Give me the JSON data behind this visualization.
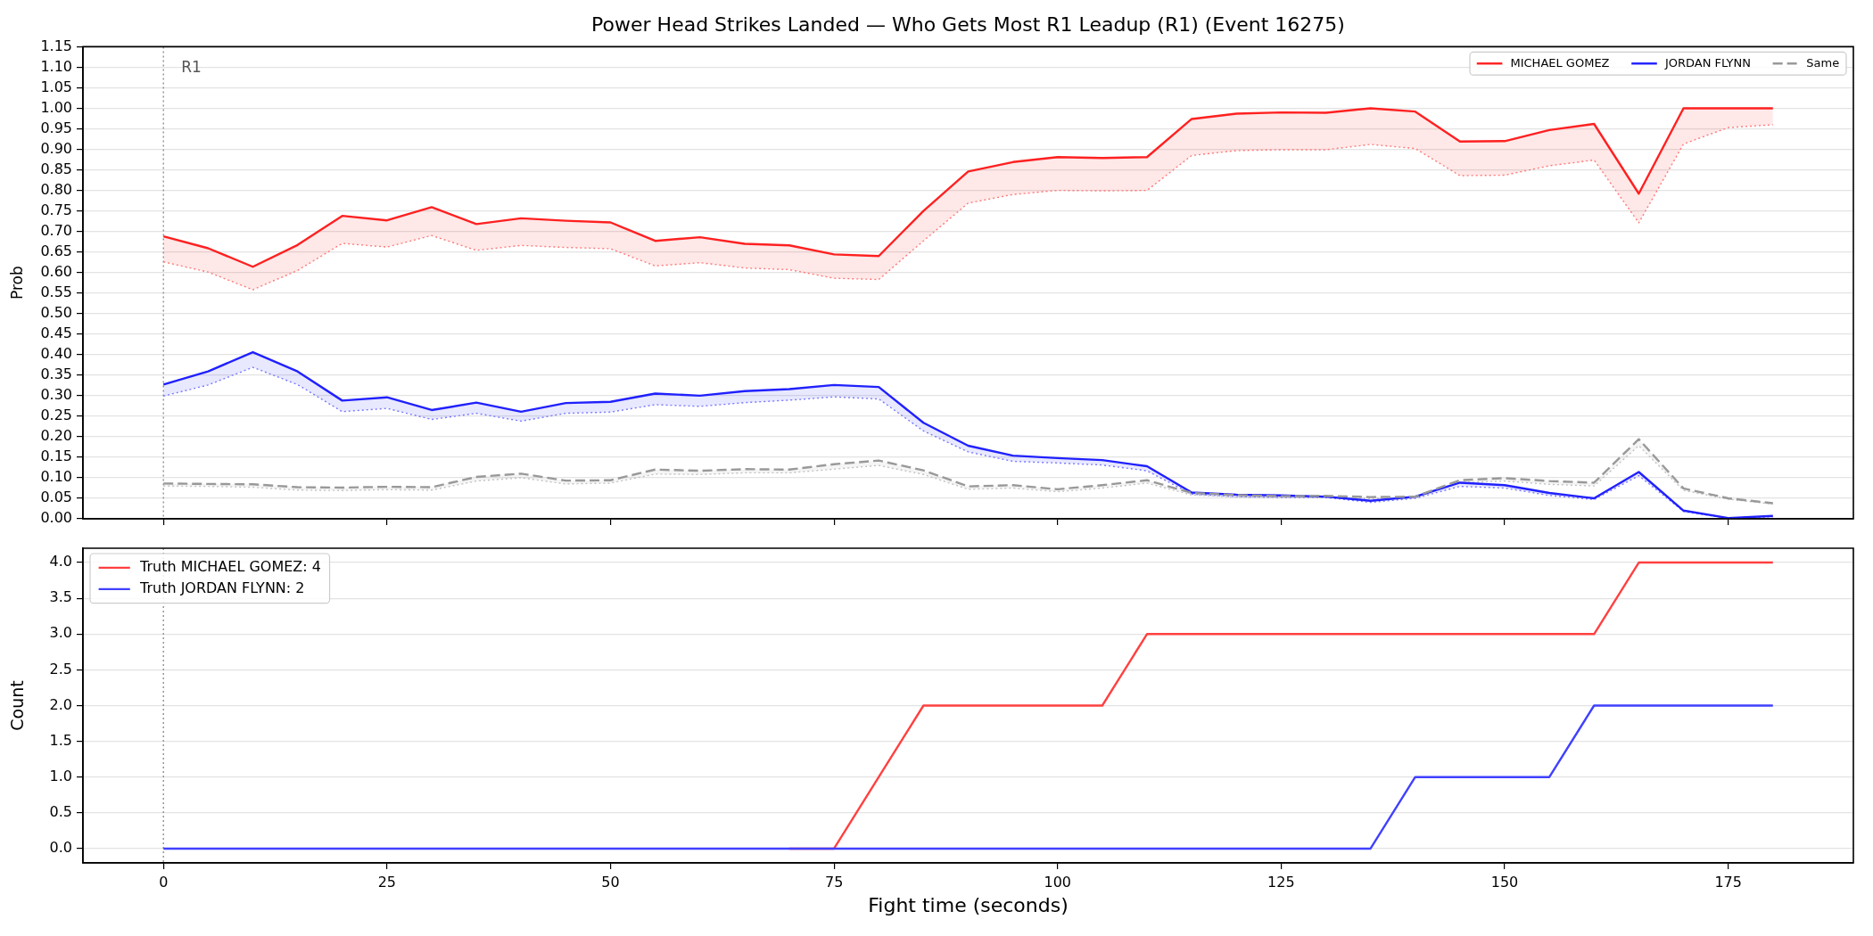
{
  "chart_data": [
    {
      "type": "line",
      "title": "Power Head Strikes Landed — Who Gets Most R1 Leadup (R1) (Event 16275)",
      "ylabel": "Prob",
      "x": [
        0,
        5,
        10,
        15,
        20,
        25,
        30,
        35,
        40,
        45,
        50,
        55,
        60,
        65,
        70,
        75,
        80,
        85,
        90,
        95,
        100,
        105,
        110,
        115,
        120,
        125,
        130,
        135,
        140,
        145,
        150,
        155,
        160,
        165,
        170,
        175,
        180
      ],
      "series": [
        {
          "color": "#ff7979",
          "line_style": "dotted",
          "values": [
            0.626,
            0.601,
            0.558,
            0.605,
            0.671,
            0.662,
            0.69,
            0.654,
            0.666,
            0.661,
            0.658,
            0.616,
            0.624,
            0.611,
            0.607,
            0.586,
            0.583,
            0.677,
            0.769,
            0.79,
            0.8,
            0.799,
            0.8,
            0.885,
            0.897,
            0.899,
            0.899,
            0.912,
            0.902,
            0.836,
            0.837,
            0.86,
            0.874,
            0.721,
            0.913,
            0.953,
            0.96
          ]
        },
        {
          "color": "#7979ff",
          "line_style": "dotted",
          "values": [
            0.299,
            0.326,
            0.369,
            0.327,
            0.261,
            0.269,
            0.242,
            0.257,
            0.238,
            0.257,
            0.26,
            0.278,
            0.274,
            0.283,
            0.289,
            0.297,
            0.292,
            0.214,
            0.163,
            0.14,
            0.136,
            0.131,
            0.117,
            0.06,
            0.054,
            0.052,
            0.052,
            0.04,
            0.05,
            0.079,
            0.075,
            0.057,
            0.047,
            0.105,
            0.018,
            0.001,
            0.005
          ]
        },
        {
          "color": "#c2c2c2",
          "line_style": "dotted",
          "values": [
            0.08,
            0.079,
            0.077,
            0.07,
            0.069,
            0.071,
            0.07,
            0.092,
            0.1,
            0.085,
            0.087,
            0.109,
            0.108,
            0.112,
            0.112,
            0.121,
            0.13,
            0.108,
            0.072,
            0.075,
            0.066,
            0.075,
            0.087,
            0.058,
            0.053,
            0.052,
            0.052,
            0.049,
            0.051,
            0.088,
            0.092,
            0.084,
            0.08,
            0.178,
            0.069,
            0.048,
            0.036
          ]
        },
        {
          "name": "MICHAEL GOMEZ",
          "color": "#ff2020",
          "values": [
            0.688,
            0.659,
            0.614,
            0.667,
            0.738,
            0.727,
            0.759,
            0.718,
            0.732,
            0.726,
            0.722,
            0.677,
            0.686,
            0.67,
            0.666,
            0.644,
            0.64,
            0.75,
            0.846,
            0.869,
            0.881,
            0.879,
            0.881,
            0.974,
            0.987,
            0.99,
            0.989,
            1.0,
            0.992,
            0.919,
            0.92,
            0.947,
            0.962,
            0.792,
            1.0,
            1.0,
            1.0
          ],
          "lower": [
            0.626,
            0.601,
            0.558,
            0.605,
            0.671,
            0.662,
            0.69,
            0.654,
            0.666,
            0.661,
            0.658,
            0.616,
            0.624,
            0.611,
            0.607,
            0.586,
            0.583,
            0.677,
            0.769,
            0.79,
            0.8,
            0.799,
            0.8,
            0.885,
            0.897,
            0.899,
            0.899,
            0.912,
            0.902,
            0.836,
            0.837,
            0.86,
            0.874,
            0.721,
            0.913,
            0.953,
            0.96
          ],
          "upper": [
            0.688,
            0.659,
            0.614,
            0.667,
            0.738,
            0.727,
            0.759,
            0.718,
            0.732,
            0.726,
            0.722,
            0.677,
            0.686,
            0.67,
            0.666,
            0.644,
            0.64,
            0.75,
            0.846,
            0.869,
            0.881,
            0.879,
            0.881,
            0.974,
            0.987,
            0.99,
            0.989,
            1.0,
            0.992,
            0.919,
            0.92,
            0.947,
            0.962,
            0.792,
            1.0,
            1.0,
            1.0
          ]
        },
        {
          "name": "JORDAN FLYNN",
          "color": "#2020ff",
          "values": [
            0.327,
            0.359,
            0.406,
            0.359,
            0.288,
            0.296,
            0.265,
            0.283,
            0.261,
            0.282,
            0.285,
            0.305,
            0.3,
            0.311,
            0.316,
            0.326,
            0.321,
            0.234,
            0.178,
            0.154,
            0.148,
            0.143,
            0.128,
            0.064,
            0.059,
            0.057,
            0.054,
            0.044,
            0.054,
            0.088,
            0.082,
            0.063,
            0.05,
            0.114,
            0.02,
            0.002,
            0.007
          ],
          "lower": [
            0.299,
            0.326,
            0.369,
            0.327,
            0.261,
            0.269,
            0.242,
            0.257,
            0.238,
            0.257,
            0.26,
            0.278,
            0.274,
            0.283,
            0.289,
            0.297,
            0.292,
            0.214,
            0.163,
            0.14,
            0.136,
            0.131,
            0.117,
            0.06,
            0.054,
            0.052,
            0.052,
            0.04,
            0.05,
            0.079,
            0.075,
            0.057,
            0.047,
            0.105,
            0.018,
            0.001,
            0.005
          ],
          "upper": [
            0.327,
            0.359,
            0.406,
            0.359,
            0.288,
            0.296,
            0.265,
            0.283,
            0.261,
            0.282,
            0.285,
            0.305,
            0.3,
            0.311,
            0.316,
            0.326,
            0.321,
            0.234,
            0.178,
            0.154,
            0.148,
            0.143,
            0.128,
            0.064,
            0.059,
            0.057,
            0.054,
            0.044,
            0.054,
            0.088,
            0.082,
            0.063,
            0.05,
            0.114,
            0.02,
            0.002,
            0.007
          ]
        },
        {
          "name": "Same",
          "color": "#999999",
          "line_style": "dashed",
          "values": [
            0.086,
            0.085,
            0.084,
            0.077,
            0.076,
            0.078,
            0.077,
            0.102,
            0.11,
            0.093,
            0.094,
            0.12,
            0.117,
            0.121,
            0.12,
            0.133,
            0.142,
            0.118,
            0.079,
            0.082,
            0.072,
            0.082,
            0.094,
            0.063,
            0.058,
            0.055,
            0.056,
            0.053,
            0.054,
            0.094,
            0.099,
            0.092,
            0.088,
            0.194,
            0.074,
            0.05,
            0.038
          ],
          "lower": [
            0.08,
            0.079,
            0.077,
            0.07,
            0.069,
            0.071,
            0.07,
            0.092,
            0.1,
            0.085,
            0.087,
            0.109,
            0.108,
            0.112,
            0.112,
            0.121,
            0.13,
            0.108,
            0.072,
            0.075,
            0.066,
            0.075,
            0.087,
            0.058,
            0.053,
            0.052,
            0.052,
            0.049,
            0.051,
            0.088,
            0.092,
            0.084,
            0.08,
            0.178,
            0.069,
            0.048,
            0.036
          ],
          "upper": [
            0.086,
            0.085,
            0.084,
            0.077,
            0.076,
            0.078,
            0.077,
            0.102,
            0.11,
            0.093,
            0.094,
            0.12,
            0.117,
            0.121,
            0.12,
            0.133,
            0.142,
            0.118,
            0.079,
            0.082,
            0.072,
            0.082,
            0.094,
            0.063,
            0.058,
            0.055,
            0.056,
            0.053,
            0.054,
            0.094,
            0.099,
            0.092,
            0.088,
            0.194,
            0.074,
            0.05,
            0.038
          ]
        }
      ],
      "xlim": [
        -9,
        189
      ],
      "xticks": [
        0,
        25,
        50,
        75,
        100,
        125,
        150,
        175
      ],
      "ylim": [
        0,
        1.15
      ],
      "yticks": [
        {
          "value": 0,
          "label": "0.00"
        },
        {
          "value": 0.05,
          "label": "0.05"
        },
        {
          "value": 0.1,
          "label": "0.10"
        },
        {
          "value": 0.15,
          "label": "0.15"
        },
        {
          "value": 0.2,
          "label": "0.20"
        },
        {
          "value": 0.25,
          "label": "0.25"
        },
        {
          "value": 0.3,
          "label": "0.30"
        },
        {
          "value": 0.35,
          "label": "0.35"
        },
        {
          "value": 0.4,
          "label": "0.40"
        },
        {
          "value": 0.45,
          "label": "0.45"
        },
        {
          "value": 0.5,
          "label": "0.50"
        },
        {
          "value": 0.55,
          "label": "0.55"
        },
        {
          "value": 0.6,
          "label": "0.60"
        },
        {
          "value": 0.65,
          "label": "0.65"
        },
        {
          "value": 0.7,
          "label": "0.70"
        },
        {
          "value": 0.75,
          "label": "0.75"
        },
        {
          "value": 0.8,
          "label": "0.80"
        },
        {
          "value": 0.85,
          "label": "0.85"
        },
        {
          "value": 0.9,
          "label": "0.90"
        },
        {
          "value": 0.95,
          "label": "0.95"
        },
        {
          "value": 1,
          "label": "1.00"
        },
        {
          "value": 1.05,
          "label": "1.05"
        },
        {
          "value": 1.1,
          "label": "1.10"
        },
        {
          "value": 1.15,
          "label": "1.15"
        }
      ],
      "ref_lines": [
        {
          "axis": "x",
          "value": 0,
          "label": "R1",
          "color": "#888888",
          "line_style": "dotted"
        }
      ],
      "grid": "y",
      "legend": "top right",
      "tick_labels": "y"
    },
    {
      "type": "line",
      "xlabel": "Fight time (seconds)",
      "ylabel": "Count",
      "x": [
        0,
        5,
        10,
        15,
        20,
        25,
        30,
        35,
        40,
        45,
        50,
        55,
        60,
        65,
        70,
        75,
        80,
        85,
        90,
        95,
        100,
        105,
        110,
        115,
        120,
        125,
        130,
        135,
        140,
        145,
        150,
        155,
        160,
        165,
        170,
        175,
        180
      ],
      "series": [
        {
          "name": "Truth MICHAEL GOMEZ: 4",
          "color": "#ff4040",
          "values": [
            null,
            null,
            null,
            null,
            null,
            null,
            null,
            null,
            null,
            null,
            null,
            null,
            null,
            null,
            0,
            0,
            1,
            2,
            2,
            2,
            2,
            2,
            3,
            3,
            3,
            3,
            3,
            3,
            3,
            3,
            3,
            3,
            3,
            4,
            4,
            4,
            4
          ]
        },
        {
          "name": "Truth JORDAN FLYNN: 2",
          "color": "#4040ff",
          "values": [
            0,
            0,
            0,
            0,
            0,
            0,
            0,
            0,
            0,
            0,
            0,
            0,
            0,
            0,
            0,
            0,
            0,
            0,
            0,
            0,
            0,
            0,
            0,
            0,
            0,
            0,
            0,
            0,
            1,
            1,
            1,
            1,
            2,
            2,
            2,
            2,
            2
          ]
        }
      ],
      "xlim": [
        -9,
        189
      ],
      "xticks": [
        0,
        25,
        50,
        75,
        100,
        125,
        150,
        175
      ],
      "ylim": [
        -0.2,
        4.2
      ],
      "yticks": [
        {
          "value": 0,
          "label": "0.0"
        },
        {
          "value": 0.5,
          "label": "0.5"
        },
        {
          "value": 1,
          "label": "1.0"
        },
        {
          "value": 1.5,
          "label": "1.5"
        },
        {
          "value": 2,
          "label": "2.0"
        },
        {
          "value": 2.5,
          "label": "2.5"
        },
        {
          "value": 3,
          "label": "3.0"
        },
        {
          "value": 3.5,
          "label": "3.5"
        },
        {
          "value": 4,
          "label": "4.0"
        }
      ],
      "ref_lines": [
        {
          "axis": "x",
          "value": 0,
          "color": "#888888",
          "line_style": "dotted"
        }
      ],
      "grid": "y",
      "legend": "top left"
    }
  ]
}
